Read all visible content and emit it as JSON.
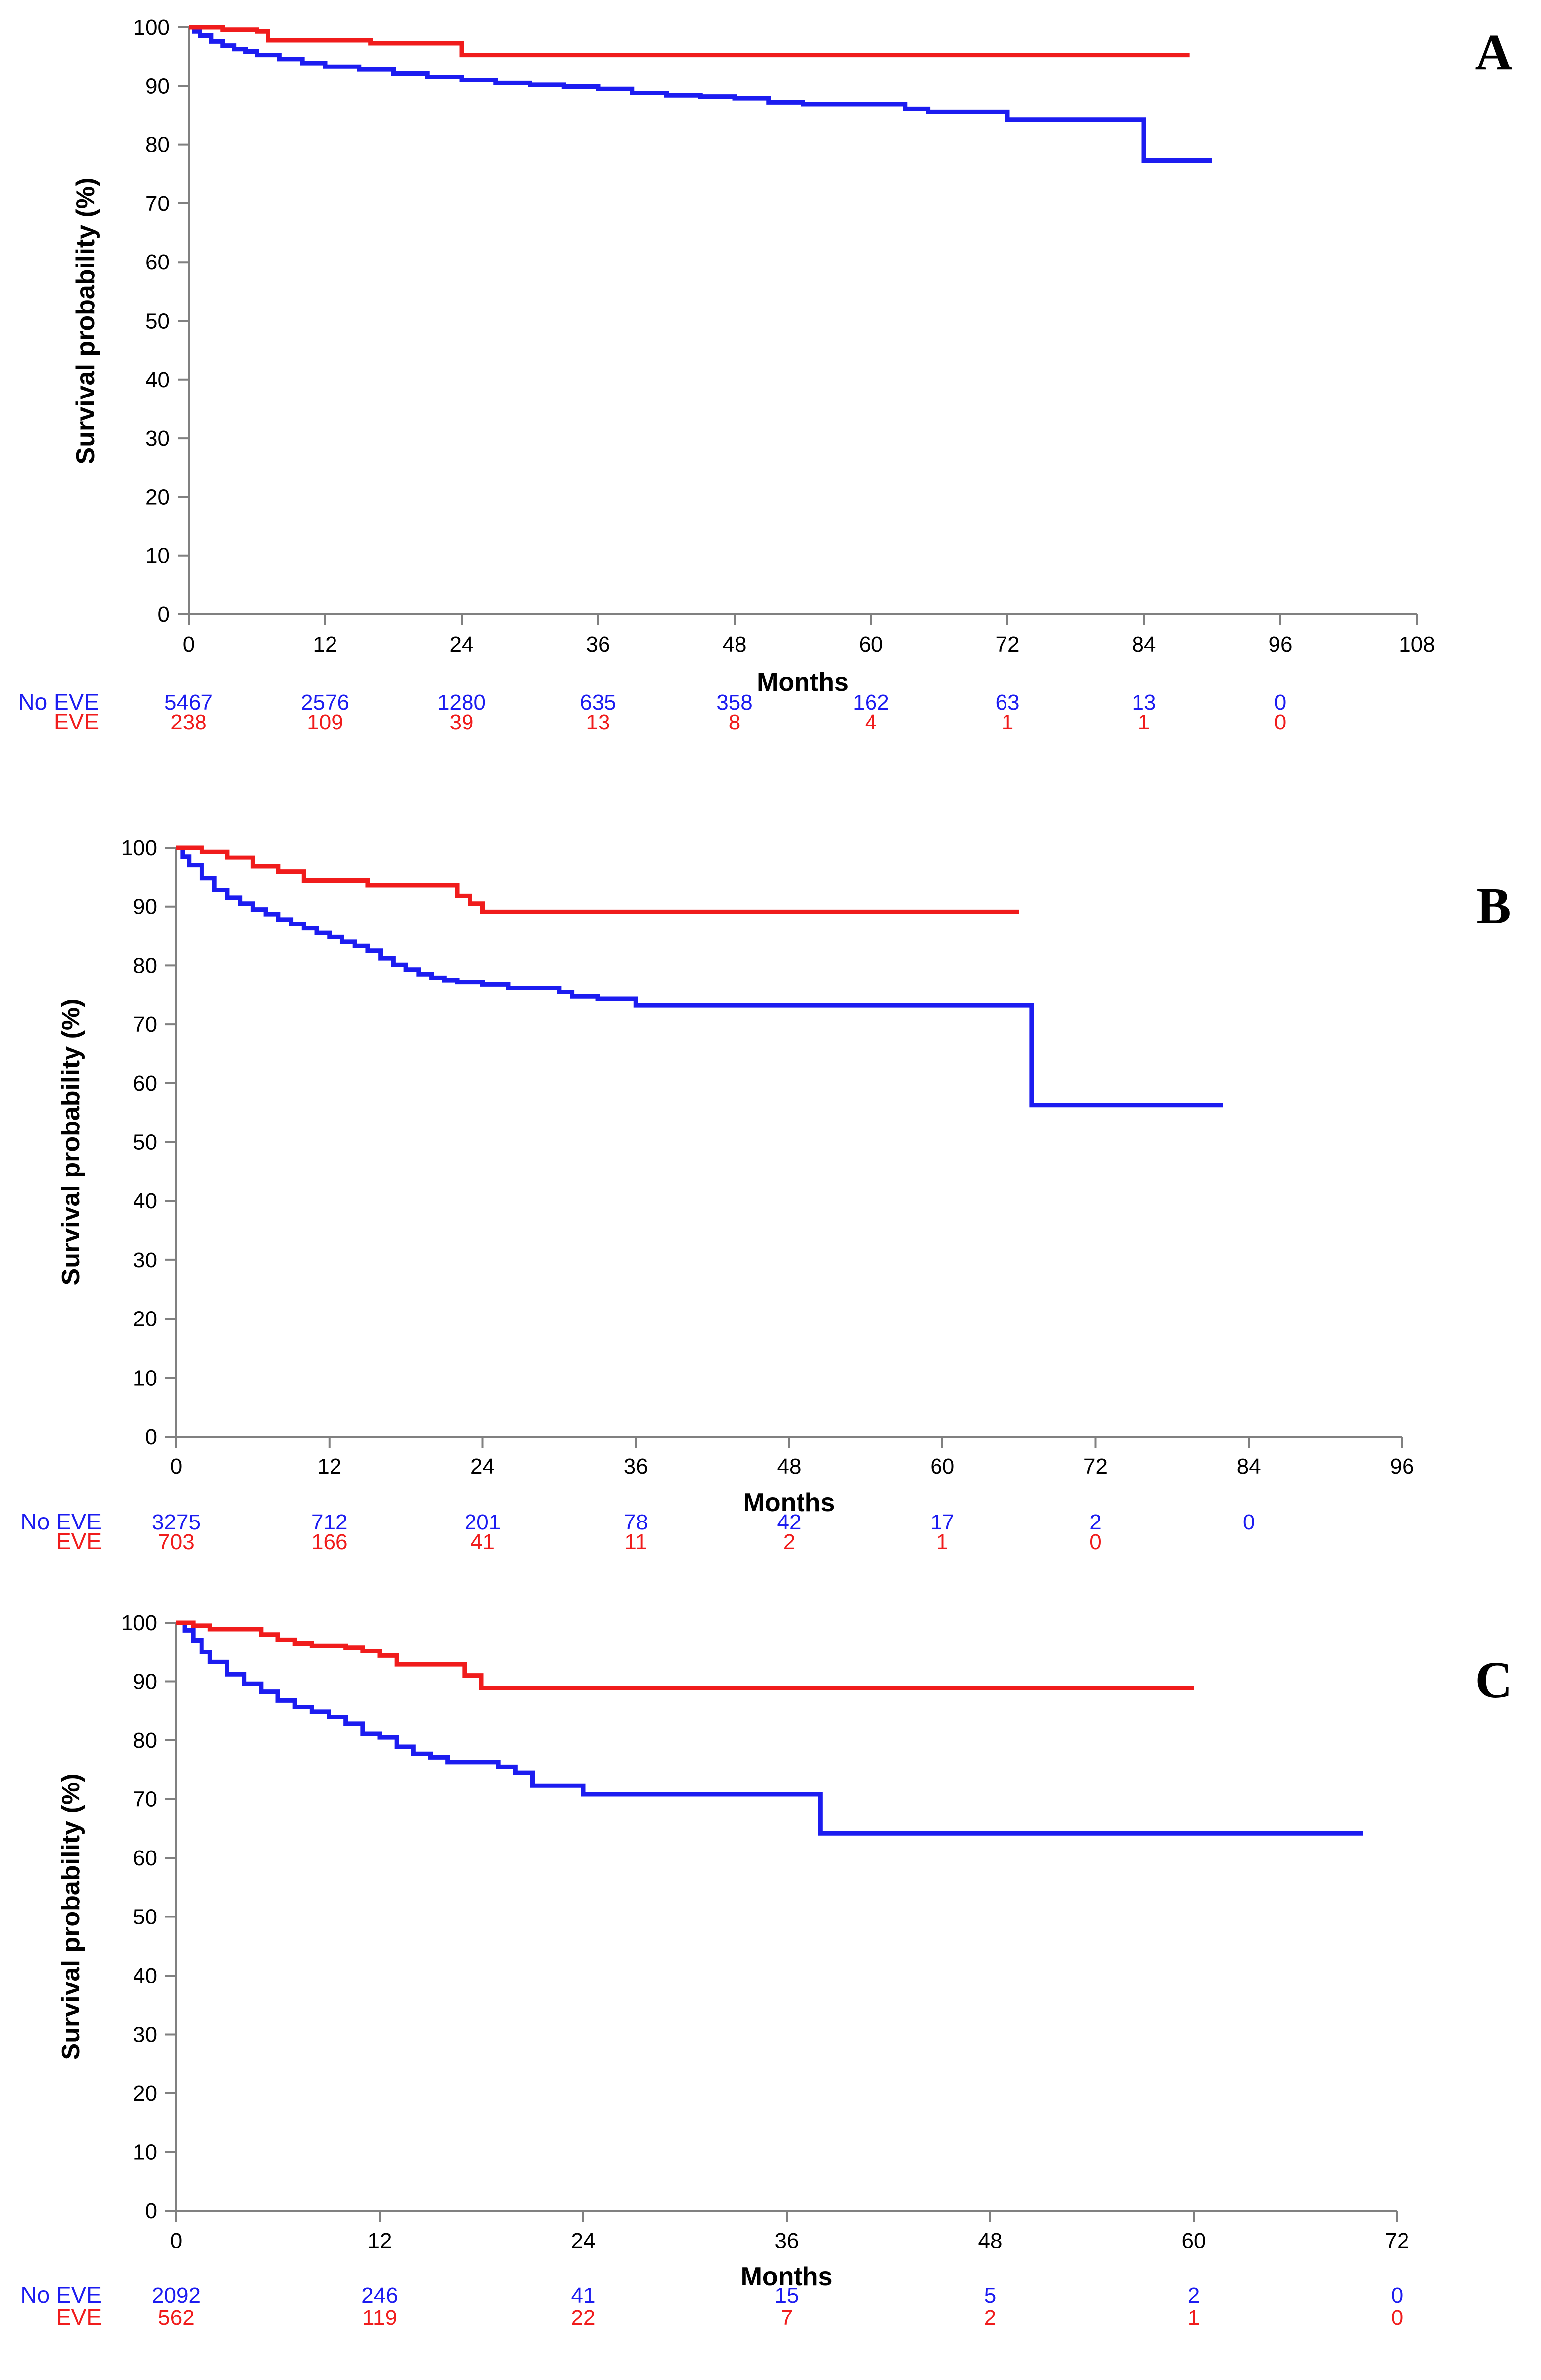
{
  "colors": {
    "no_eve": "#1c1cf0",
    "eve": "#f01c1c",
    "axis": "#808080"
  },
  "chart_data": [
    {
      "type": "line",
      "panel_label": "A",
      "xlabel": "Months",
      "ylabel": "Survival probability (%)",
      "xlim": [
        0,
        108
      ],
      "ylim": [
        0,
        100
      ],
      "xticks": [
        0,
        12,
        24,
        36,
        48,
        60,
        72,
        84,
        96,
        108
      ],
      "yticks": [
        0,
        10,
        20,
        30,
        40,
        50,
        60,
        70,
        80,
        90,
        100
      ],
      "step": true,
      "series": [
        {
          "key": "no_eve",
          "x": [
            0,
            0.5,
            1,
            2,
            3,
            4,
            5,
            6,
            8,
            10,
            12,
            15,
            18,
            21,
            24,
            27,
            30,
            33,
            36,
            39,
            42,
            45,
            48,
            51,
            54,
            57,
            60,
            63,
            65,
            68,
            72,
            76,
            80,
            84,
            87,
            90
          ],
          "y": [
            100,
            99.3,
            98.6,
            97.6,
            96.9,
            96.3,
            95.9,
            95.3,
            94.6,
            93.9,
            93.3,
            92.8,
            92.1,
            91.5,
            91.0,
            90.5,
            90.2,
            89.9,
            89.5,
            88.8,
            88.4,
            88.2,
            87.9,
            87.2,
            86.9,
            86.9,
            86.9,
            86.1,
            85.6,
            85.6,
            84.3,
            84.3,
            84.3,
            77.3,
            77.3,
            77.3
          ]
        },
        {
          "key": "eve",
          "x": [
            0,
            3,
            6,
            7,
            10,
            14,
            16,
            20,
            24,
            30,
            40,
            60,
            80,
            88
          ],
          "y": [
            100,
            99.6,
            99.3,
            97.8,
            97.8,
            97.8,
            97.3,
            97.3,
            95.3,
            95.3,
            95.3,
            95.3,
            95.3,
            95.3
          ]
        }
      ],
      "risk_table": {
        "labels": {
          "no_eve": "No EVE",
          "eve": "EVE"
        },
        "times": [
          0,
          12,
          24,
          36,
          48,
          60,
          72,
          84,
          96
        ],
        "no_eve": [
          "5467",
          "2576",
          "1280",
          "635",
          "358",
          "162",
          "63",
          "13",
          "0"
        ],
        "eve": [
          "238",
          "109",
          "39",
          "13",
          "8",
          "4",
          "1",
          "1",
          "0"
        ]
      }
    },
    {
      "type": "line",
      "panel_label": "B",
      "xlabel": "Months",
      "ylabel": "Survival probability (%)",
      "xlim": [
        0,
        96
      ],
      "ylim": [
        0,
        100
      ],
      "xticks": [
        0,
        12,
        24,
        36,
        48,
        60,
        72,
        84,
        96
      ],
      "yticks": [
        0,
        10,
        20,
        30,
        40,
        50,
        60,
        70,
        80,
        90,
        100
      ],
      "step": true,
      "series": [
        {
          "key": "no_eve",
          "x": [
            0,
            0.5,
            1,
            2,
            3,
            4,
            5,
            6,
            7,
            8,
            9,
            10,
            11,
            12,
            13,
            14,
            15,
            16,
            17,
            18,
            19,
            20,
            21,
            22,
            24,
            26,
            28,
            30,
            31,
            33,
            36,
            40,
            50,
            60,
            67,
            72,
            82
          ],
          "y": [
            100,
            98.5,
            97,
            94.8,
            92.8,
            91.5,
            90.5,
            89.5,
            88.7,
            87.8,
            87,
            86.3,
            85.5,
            84.8,
            84,
            83.3,
            82.5,
            81.2,
            80.1,
            79.3,
            78.5,
            77.9,
            77.5,
            77.2,
            76.8,
            76.2,
            76.2,
            75.5,
            74.7,
            74.3,
            73.2,
            73.2,
            73.2,
            73.2,
            56.3,
            56.3,
            56.3
          ]
        },
        {
          "key": "eve",
          "x": [
            0,
            2,
            4,
            6,
            8,
            10,
            13,
            15,
            18,
            22,
            23,
            24,
            30,
            40,
            50,
            60,
            66
          ],
          "y": [
            100,
            99.3,
            98.3,
            96.8,
            95.9,
            94.4,
            94.4,
            93.6,
            93.6,
            91.8,
            90.5,
            89.1,
            89.1,
            89.1,
            89.1,
            89.1,
            89.1
          ]
        }
      ],
      "risk_table": {
        "labels": {
          "no_eve": "No EVE",
          "eve": "EVE"
        },
        "times": [
          0,
          12,
          24,
          36,
          48,
          60,
          72,
          84
        ],
        "no_eve": [
          "3275",
          "712",
          "201",
          "78",
          "42",
          "17",
          "2",
          "0"
        ],
        "eve": [
          "703",
          "166",
          "41",
          "11",
          "2",
          "1",
          "0",
          ""
        ]
      }
    },
    {
      "type": "line",
      "panel_label": "C",
      "xlabel": "Months",
      "ylabel": "Survival probability (%)",
      "xlim": [
        0,
        72
      ],
      "ylim": [
        0,
        100
      ],
      "xticks": [
        0,
        12,
        24,
        36,
        48,
        60,
        72
      ],
      "yticks": [
        0,
        10,
        20,
        30,
        40,
        50,
        60,
        70,
        80,
        90,
        100
      ],
      "step": true,
      "series": [
        {
          "key": "no_eve",
          "x": [
            0,
            0.5,
            1,
            1.5,
            2,
            3,
            4,
            5,
            6,
            7,
            8,
            9,
            10,
            11,
            12,
            13,
            14,
            15,
            16,
            18,
            19,
            20,
            21,
            22,
            24,
            28,
            32,
            36,
            38,
            45,
            60,
            70
          ],
          "y": [
            100,
            98.7,
            97,
            95,
            93.3,
            91.2,
            89.6,
            88.3,
            86.8,
            85.7,
            84.9,
            84.0,
            82.8,
            81.1,
            80.5,
            78.9,
            77.7,
            77.1,
            76.3,
            76.3,
            75.5,
            74.5,
            72.3,
            72.3,
            70.8,
            70.8,
            70.8,
            70.8,
            64.2,
            64.2,
            64.2,
            64.2
          ]
        },
        {
          "key": "eve",
          "x": [
            0,
            1,
            2,
            4,
            5,
            6,
            7,
            8,
            10,
            11,
            12,
            13,
            15,
            16,
            17,
            18,
            24,
            36,
            48,
            60
          ],
          "y": [
            100,
            99.5,
            98.9,
            98.9,
            98.0,
            97.1,
            96.5,
            96.1,
            95.8,
            95.2,
            94.4,
            92.9,
            92.9,
            92.9,
            91.0,
            88.9,
            88.9,
            88.9,
            88.9,
            88.9
          ]
        }
      ],
      "risk_table": {
        "labels": {
          "no_eve": "No EVE",
          "eve": "EVE"
        },
        "times": [
          0,
          12,
          24,
          36,
          48,
          60,
          72
        ],
        "no_eve": [
          "2092",
          "246",
          "41",
          "15",
          "5",
          "2",
          "0"
        ],
        "eve": [
          "562",
          "119",
          "22",
          "7",
          "2",
          "1",
          "0"
        ]
      }
    }
  ]
}
